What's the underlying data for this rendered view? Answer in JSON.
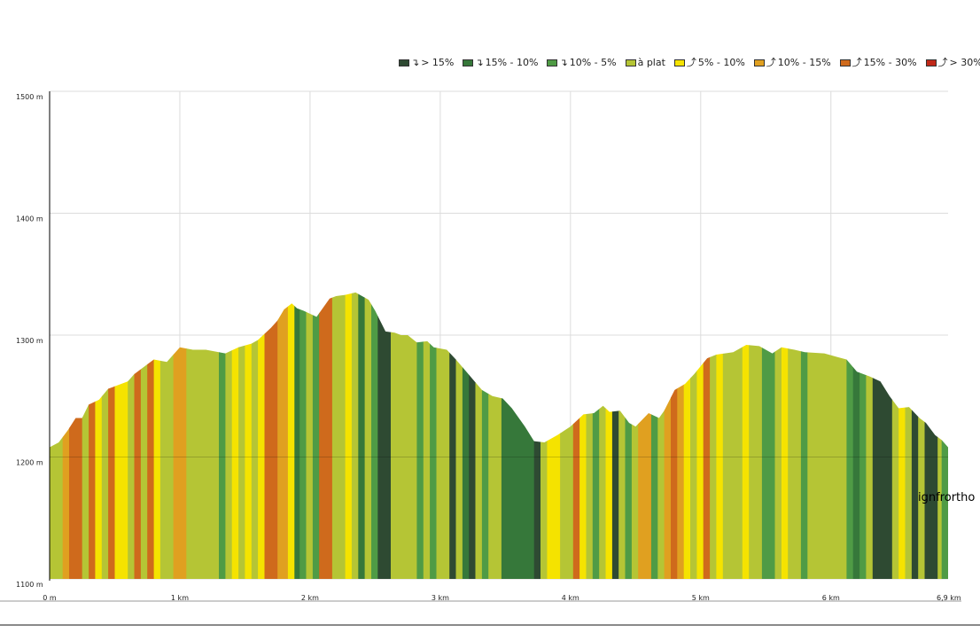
{
  "legend": [
    {
      "arrow": "↴",
      "label": "> 15%",
      "color": "#2e4a32"
    },
    {
      "arrow": "↴",
      "label": "15% - 10%",
      "color": "#36783a"
    },
    {
      "arrow": "↴",
      "label": "10% - 5%",
      "color": "#4f9b45"
    },
    {
      "arrow": "",
      "label": "à plat",
      "color": "#b5c535"
    },
    {
      "arrow": "⤴",
      "label": "5% - 10%",
      "color": "#f5e300"
    },
    {
      "arrow": "⤴",
      "label": "10% - 15%",
      "color": "#e0a020"
    },
    {
      "arrow": "⤴",
      "label": "15% - 30%",
      "color": "#cf6a1c"
    },
    {
      "arrow": "⤴",
      "label": "> 30%",
      "color": "#c02818"
    }
  ],
  "layer_label": "ignfrortho",
  "chart_data": {
    "type": "area",
    "xlim": [
      0,
      6.9
    ],
    "ylim": [
      1100,
      1500
    ],
    "grid": true,
    "legend_position": "top-right",
    "x_ticks": [
      "0 m",
      "1 km",
      "2 km",
      "3 km",
      "4 km",
      "5 km",
      "6 km",
      "6,9 km"
    ],
    "y_ticks": [
      "1500 m",
      "1400 m",
      "1300 m",
      "1200 m",
      "1100 m"
    ],
    "profile": [
      [
        0,
        1208
      ],
      [
        0.07,
        1212
      ],
      [
        0.14,
        1222
      ],
      [
        0.2,
        1232
      ],
      [
        0.25,
        1232
      ],
      [
        0.3,
        1243
      ],
      [
        0.38,
        1247
      ],
      [
        0.45,
        1256
      ],
      [
        0.5,
        1258
      ],
      [
        0.6,
        1262
      ],
      [
        0.65,
        1268
      ],
      [
        0.75,
        1276
      ],
      [
        0.8,
        1280
      ],
      [
        0.85,
        1279
      ],
      [
        0.9,
        1278
      ],
      [
        1.0,
        1290
      ],
      [
        1.1,
        1288
      ],
      [
        1.2,
        1288
      ],
      [
        1.3,
        1286
      ],
      [
        1.35,
        1285
      ],
      [
        1.45,
        1290
      ],
      [
        1.55,
        1293
      ],
      [
        1.6,
        1296
      ],
      [
        1.7,
        1306
      ],
      [
        1.75,
        1312
      ],
      [
        1.8,
        1321
      ],
      [
        1.86,
        1326
      ],
      [
        1.9,
        1322
      ],
      [
        1.95,
        1320
      ],
      [
        2.05,
        1315
      ],
      [
        2.15,
        1330
      ],
      [
        2.2,
        1332
      ],
      [
        2.27,
        1333
      ],
      [
        2.35,
        1335
      ],
      [
        2.45,
        1329
      ],
      [
        2.5,
        1320
      ],
      [
        2.58,
        1303
      ],
      [
        2.65,
        1302
      ],
      [
        2.7,
        1300
      ],
      [
        2.75,
        1300
      ],
      [
        2.82,
        1294
      ],
      [
        2.9,
        1295
      ],
      [
        2.95,
        1290
      ],
      [
        3.05,
        1288
      ],
      [
        3.12,
        1280
      ],
      [
        3.2,
        1270
      ],
      [
        3.28,
        1260
      ],
      [
        3.32,
        1255
      ],
      [
        3.4,
        1250
      ],
      [
        3.48,
        1248
      ],
      [
        3.55,
        1240
      ],
      [
        3.65,
        1225
      ],
      [
        3.72,
        1213
      ],
      [
        3.8,
        1212
      ],
      [
        3.9,
        1218
      ],
      [
        4.0,
        1225
      ],
      [
        4.1,
        1235
      ],
      [
        4.18,
        1236
      ],
      [
        4.25,
        1242
      ],
      [
        4.3,
        1237
      ],
      [
        4.38,
        1238
      ],
      [
        4.45,
        1228
      ],
      [
        4.5,
        1225
      ],
      [
        4.6,
        1236
      ],
      [
        4.68,
        1232
      ],
      [
        4.72,
        1238
      ],
      [
        4.8,
        1255
      ],
      [
        4.88,
        1260
      ],
      [
        4.95,
        1268
      ],
      [
        5.05,
        1281
      ],
      [
        5.12,
        1284
      ],
      [
        5.25,
        1286
      ],
      [
        5.35,
        1292
      ],
      [
        5.45,
        1291
      ],
      [
        5.55,
        1285
      ],
      [
        5.62,
        1290
      ],
      [
        5.72,
        1288
      ],
      [
        5.8,
        1286
      ],
      [
        5.95,
        1285
      ],
      [
        6.05,
        1282
      ],
      [
        6.12,
        1280
      ],
      [
        6.2,
        1270
      ],
      [
        6.3,
        1266
      ],
      [
        6.38,
        1262
      ],
      [
        6.45,
        1250
      ],
      [
        6.52,
        1240
      ],
      [
        6.6,
        1241
      ],
      [
        6.68,
        1232
      ],
      [
        6.73,
        1228
      ],
      [
        6.8,
        1218
      ],
      [
        6.85,
        1214
      ],
      [
        6.9,
        1208
      ]
    ],
    "segments": [
      [
        0.0,
        0.1,
        "à plat"
      ],
      [
        0.1,
        0.15,
        "10% - 15%"
      ],
      [
        0.15,
        0.25,
        "15% - 30%"
      ],
      [
        0.25,
        0.3,
        "à plat"
      ],
      [
        0.3,
        0.35,
        "15% - 30%"
      ],
      [
        0.35,
        0.4,
        "5% - 10%"
      ],
      [
        0.4,
        0.45,
        "à plat"
      ],
      [
        0.45,
        0.5,
        "15% - 30%"
      ],
      [
        0.5,
        0.6,
        "5% - 10%"
      ],
      [
        0.6,
        0.65,
        "à plat"
      ],
      [
        0.65,
        0.7,
        "15% - 30%"
      ],
      [
        0.7,
        0.75,
        "à plat"
      ],
      [
        0.75,
        0.8,
        "15% - 30%"
      ],
      [
        0.8,
        0.85,
        "5% - 10%"
      ],
      [
        0.85,
        0.95,
        "à plat"
      ],
      [
        0.95,
        1.05,
        "10% - 15%"
      ],
      [
        1.05,
        1.3,
        "à plat"
      ],
      [
        1.3,
        1.35,
        "10% - 5%"
      ],
      [
        1.35,
        1.4,
        "à plat"
      ],
      [
        1.4,
        1.45,
        "5% - 10%"
      ],
      [
        1.45,
        1.5,
        "à plat"
      ],
      [
        1.5,
        1.55,
        "5% - 10%"
      ],
      [
        1.55,
        1.6,
        "à plat"
      ],
      [
        1.6,
        1.65,
        "5% - 10%"
      ],
      [
        1.65,
        1.75,
        "15% - 30%"
      ],
      [
        1.75,
        1.83,
        "10% - 15%"
      ],
      [
        1.83,
        1.88,
        "5% - 10%"
      ],
      [
        1.88,
        1.92,
        "15% - 10%"
      ],
      [
        1.92,
        1.97,
        "10% - 5%"
      ],
      [
        1.97,
        2.02,
        "à plat"
      ],
      [
        2.02,
        2.07,
        "10% - 5%"
      ],
      [
        2.07,
        2.17,
        "15% - 30%"
      ],
      [
        2.17,
        2.27,
        "à plat"
      ],
      [
        2.27,
        2.32,
        "5% - 10%"
      ],
      [
        2.32,
        2.37,
        "à plat"
      ],
      [
        2.37,
        2.42,
        "15% - 10%"
      ],
      [
        2.42,
        2.47,
        "à plat"
      ],
      [
        2.47,
        2.52,
        "10% - 5%"
      ],
      [
        2.52,
        2.62,
        "> 15%"
      ],
      [
        2.62,
        2.72,
        "à plat"
      ],
      [
        2.72,
        2.82,
        "à plat"
      ],
      [
        2.82,
        2.87,
        "10% - 5%"
      ],
      [
        2.87,
        2.92,
        "à plat"
      ],
      [
        2.92,
        2.97,
        "10% - 5%"
      ],
      [
        2.97,
        3.07,
        "à plat"
      ],
      [
        3.07,
        3.12,
        "> 15%"
      ],
      [
        3.12,
        3.17,
        "à plat"
      ],
      [
        3.17,
        3.22,
        "15% - 10%"
      ],
      [
        3.22,
        3.27,
        "> 15%"
      ],
      [
        3.27,
        3.32,
        "à plat"
      ],
      [
        3.32,
        3.37,
        "10% - 5%"
      ],
      [
        3.37,
        3.47,
        "à plat"
      ],
      [
        3.47,
        3.72,
        "15% - 10%"
      ],
      [
        3.72,
        3.77,
        "> 15%"
      ],
      [
        3.77,
        3.82,
        "à plat"
      ],
      [
        3.82,
        3.92,
        "5% - 10%"
      ],
      [
        3.92,
        4.02,
        "à plat"
      ],
      [
        4.02,
        4.07,
        "15% - 30%"
      ],
      [
        4.07,
        4.12,
        "5% - 10%"
      ],
      [
        4.12,
        4.17,
        "à plat"
      ],
      [
        4.17,
        4.22,
        "10% - 5%"
      ],
      [
        4.22,
        4.27,
        "à plat"
      ],
      [
        4.27,
        4.32,
        "5% - 10%"
      ],
      [
        4.32,
        4.37,
        "> 15%"
      ],
      [
        4.37,
        4.42,
        "à plat"
      ],
      [
        4.42,
        4.47,
        "10% - 5%"
      ],
      [
        4.47,
        4.52,
        "à plat"
      ],
      [
        4.52,
        4.62,
        "10% - 15%"
      ],
      [
        4.62,
        4.67,
        "10% - 5%"
      ],
      [
        4.67,
        4.72,
        "à plat"
      ],
      [
        4.72,
        4.77,
        "10% - 15%"
      ],
      [
        4.77,
        4.82,
        "15% - 30%"
      ],
      [
        4.82,
        4.87,
        "10% - 15%"
      ],
      [
        4.87,
        4.92,
        "5% - 10%"
      ],
      [
        4.92,
        4.97,
        "à plat"
      ],
      [
        4.97,
        5.02,
        "5% - 10%"
      ],
      [
        5.02,
        5.07,
        "15% - 30%"
      ],
      [
        5.07,
        5.12,
        "à plat"
      ],
      [
        5.12,
        5.17,
        "5% - 10%"
      ],
      [
        5.17,
        5.32,
        "à plat"
      ],
      [
        5.32,
        5.37,
        "5% - 10%"
      ],
      [
        5.37,
        5.47,
        "à plat"
      ],
      [
        5.47,
        5.57,
        "10% - 5%"
      ],
      [
        5.57,
        5.62,
        "à plat"
      ],
      [
        5.62,
        5.67,
        "5% - 10%"
      ],
      [
        5.67,
        5.77,
        "à plat"
      ],
      [
        5.77,
        5.82,
        "10% - 5%"
      ],
      [
        5.82,
        6.12,
        "à plat"
      ],
      [
        6.12,
        6.17,
        "10% - 5%"
      ],
      [
        6.17,
        6.22,
        "15% - 10%"
      ],
      [
        6.22,
        6.27,
        "10% - 5%"
      ],
      [
        6.27,
        6.32,
        "à plat"
      ],
      [
        6.32,
        6.47,
        "> 15%"
      ],
      [
        6.47,
        6.52,
        "à plat"
      ],
      [
        6.52,
        6.57,
        "5% - 10%"
      ],
      [
        6.57,
        6.62,
        "à plat"
      ],
      [
        6.62,
        6.67,
        "> 15%"
      ],
      [
        6.67,
        6.72,
        "à plat"
      ],
      [
        6.72,
        6.82,
        "> 15%"
      ],
      [
        6.82,
        6.85,
        "à plat"
      ],
      [
        6.85,
        6.9,
        "10% - 5%"
      ]
    ]
  }
}
